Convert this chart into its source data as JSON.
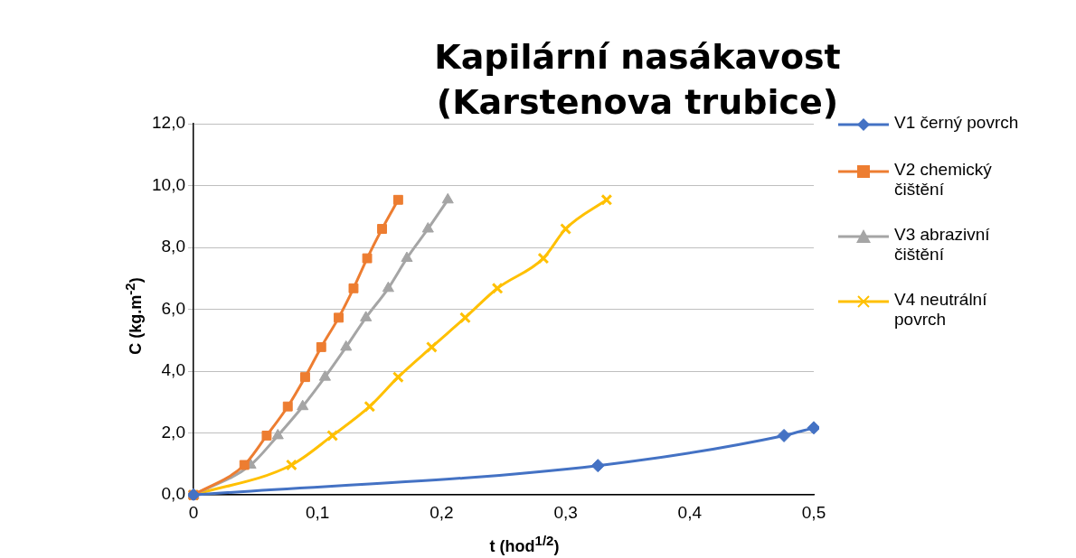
{
  "chart_data": {
    "type": "line",
    "title": "Kapilární nasákavost (Karstenova trubice)",
    "xlabel": "t (hod$^{1/2}$)",
    "ylabel": "C (kg.m$^{-2}$)",
    "xlim": [
      0,
      0.5
    ],
    "xticks": [
      {
        "value": 0,
        "label": "0"
      },
      {
        "value": 0.1,
        "label": "0,1"
      },
      {
        "value": 0.2,
        "label": "0,2"
      },
      {
        "value": 0.3,
        "label": "0,3"
      },
      {
        "value": 0.4,
        "label": "0,4"
      },
      {
        "value": 0.5,
        "label": "0,5"
      }
    ],
    "ylim": [
      0,
      12
    ],
    "yticks": [
      {
        "value": 0,
        "label": "0,0"
      },
      {
        "value": 2,
        "label": "2,0"
      },
      {
        "value": 4,
        "label": "4,0"
      },
      {
        "value": 6,
        "label": "6,0"
      },
      {
        "value": 8,
        "label": "8,0"
      },
      {
        "value": 10,
        "label": "10,0"
      },
      {
        "value": 12,
        "label": "12,0"
      }
    ],
    "grid": "y",
    "legend": "right",
    "series": [
      {
        "name": "V1 černý povrch",
        "color": "#4472c4",
        "marker": "diamond",
        "x": [
          0,
          0.326,
          0.476,
          0.5
        ],
        "values": [
          0,
          0.95,
          1.92,
          2.17
        ]
      },
      {
        "name": "V2 chemický čištění",
        "color": "#ed7d31",
        "marker": "square",
        "x": [
          0,
          0.041,
          0.059,
          0.076,
          0.09,
          0.103,
          0.117,
          0.129,
          0.14,
          0.152,
          0.165
        ],
        "values": [
          0,
          0.97,
          1.92,
          2.86,
          3.81,
          4.78,
          5.73,
          6.68,
          7.65,
          8.6,
          9.54
        ]
      },
      {
        "name": "V3 abrazivní čištění",
        "color": "#a5a5a5",
        "marker": "triangle",
        "x": [
          0,
          0.046,
          0.068,
          0.088,
          0.106,
          0.123,
          0.139,
          0.157,
          0.172,
          0.189,
          0.205
        ],
        "values": [
          0,
          0.97,
          1.92,
          2.86,
          3.81,
          4.78,
          5.73,
          6.68,
          7.65,
          8.6,
          9.54
        ]
      },
      {
        "name": "V4 neutrální povrch",
        "color": "#ffc000",
        "marker": "cross",
        "x": [
          0,
          0.079,
          0.112,
          0.142,
          0.165,
          0.192,
          0.219,
          0.245,
          0.282,
          0.3,
          0.333
        ],
        "values": [
          0,
          0.97,
          1.92,
          2.86,
          3.81,
          4.78,
          5.73,
          6.68,
          7.65,
          8.6,
          9.54
        ]
      }
    ]
  }
}
